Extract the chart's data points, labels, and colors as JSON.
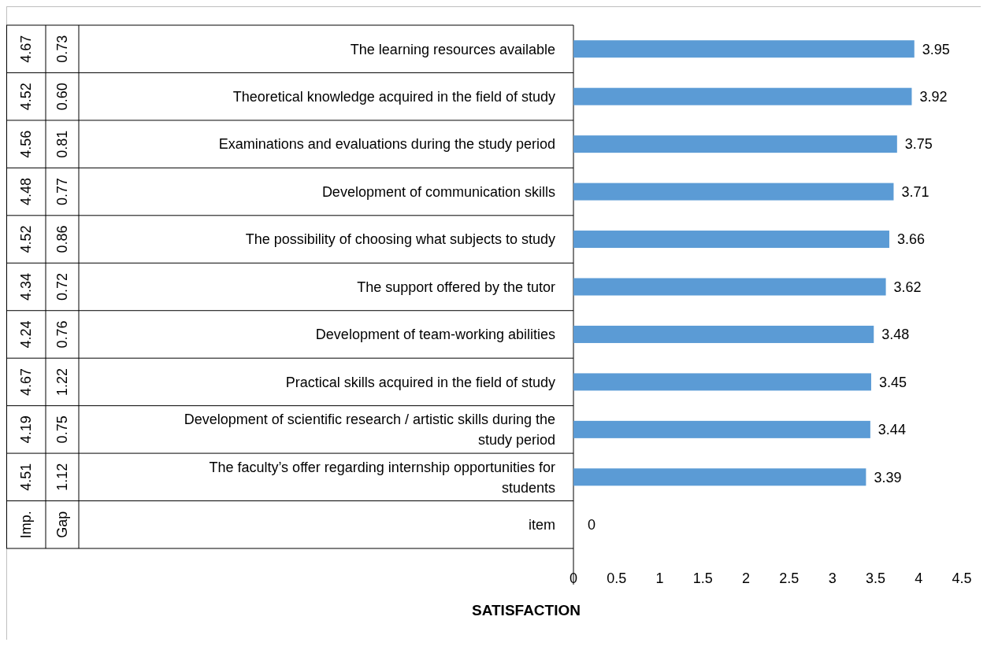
{
  "chart_data": {
    "type": "bar",
    "orientation": "horizontal",
    "xlabel": "SATISFACTION",
    "categories": [
      "The learning resources available",
      "Theoretical knowledge acquired in the field of study",
      "Examinations and evaluations during the study period",
      "Development of communication skills",
      "The possibility of choosing what subjects to study",
      "The support offered by the tutor",
      "Development of team-working abilities",
      "Practical skills acquired in the field of study",
      "Development of scientific research / artistic skills during the study period",
      "The faculty’s offer regarding internship opportunities for students",
      "item"
    ],
    "values": [
      3.95,
      3.92,
      3.75,
      3.71,
      3.66,
      3.62,
      3.48,
      3.45,
      3.44,
      3.39,
      0
    ],
    "color": "#5b9bd5",
    "data_labels": true,
    "xlim": [
      0,
      4.5
    ],
    "xticks": [
      0,
      0.5,
      1,
      1.5,
      2,
      2.5,
      3,
      3.5,
      4,
      4.5
    ],
    "annotations": [
      "4.67",
      "0.73",
      "4.52",
      "0.60",
      "4.56",
      "0.81",
      "4.48",
      "0.77",
      "4.52",
      "0.86",
      "4.34",
      "0.72",
      "4.24",
      "0.76",
      "4.67",
      "1.22",
      "4.19",
      "0.75",
      "4.51",
      "1.12",
      "Imp.",
      "Gap"
    ]
  }
}
